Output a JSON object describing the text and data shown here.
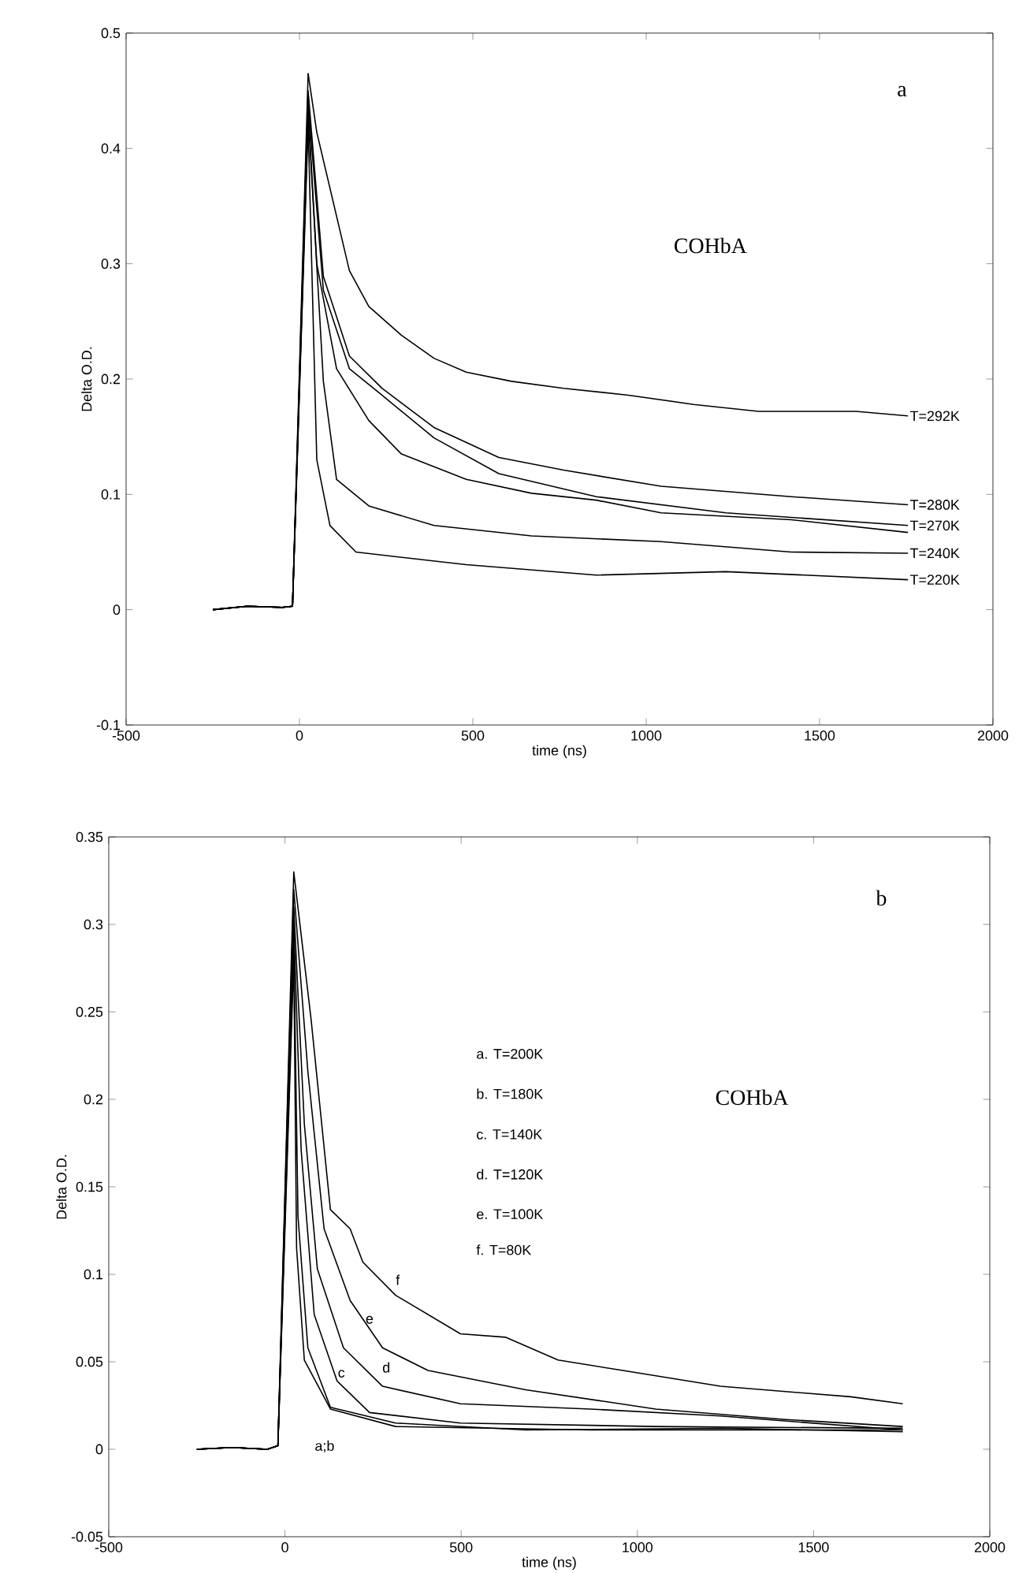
{
  "chart_data": [
    {
      "type": "line",
      "xlabel": "time  (ns)",
      "ylabel": "Delta O.D.",
      "xlim": [
        -500,
        2000
      ],
      "ylim": [
        -0.1,
        0.5
      ],
      "xticks": [
        -500,
        0,
        500,
        1000,
        1500,
        2000
      ],
      "yticks": [
        -0.1,
        0,
        0.1,
        0.2,
        0.3,
        0.4,
        0.5
      ],
      "series": [
        {
          "name": "T=292K",
          "color": "#000000",
          "x": [
            -250,
            -150,
            -50,
            -20,
            25,
            50,
            144,
            200,
            294,
            388,
            481,
            612,
            762,
            949,
            1137,
            1324,
            1605,
            1755
          ],
          "values": [
            0.0,
            0.003,
            0.002,
            0.003,
            0.465,
            0.414,
            0.294,
            0.263,
            0.238,
            0.218,
            0.206,
            0.198,
            0.192,
            0.186,
            0.178,
            0.172,
            0.172,
            0.168
          ]
        },
        {
          "name": "T=280K",
          "color": "#000000",
          "x": [
            -250,
            -150,
            -50,
            -20,
            25,
            69,
            144,
            238,
            388,
            575,
            762,
            1043,
            1418,
            1755
          ],
          "values": [
            0.0,
            0.003,
            0.002,
            0.003,
            0.45,
            0.289,
            0.22,
            0.192,
            0.158,
            0.132,
            0.121,
            0.107,
            0.098,
            0.091
          ]
        },
        {
          "name": "T=270K",
          "color": "#000000",
          "x": [
            -250,
            -150,
            -50,
            -20,
            25,
            69,
            144,
            238,
            388,
            575,
            856,
            1230,
            1755
          ],
          "values": [
            0.0,
            0.003,
            0.002,
            0.003,
            0.44,
            0.277,
            0.209,
            0.186,
            0.149,
            0.118,
            0.098,
            0.084,
            0.073
          ]
        },
        {
          "color": "#000000",
          "x": [
            -250,
            -150,
            -50,
            -20,
            25,
            50,
            107,
            200,
            294,
            481,
            669,
            856,
            1043,
            1418,
            1755
          ],
          "values": [
            0.0,
            0.003,
            0.002,
            0.003,
            0.435,
            0.3,
            0.209,
            0.164,
            0.135,
            0.113,
            0.101,
            0.095,
            0.084,
            0.078,
            0.067
          ]
        },
        {
          "name": "T=240K",
          "color": "#000000",
          "x": [
            -250,
            -150,
            -50,
            -20,
            25,
            69,
            107,
            200,
            388,
            669,
            1043,
            1418,
            1755
          ],
          "values": [
            0.0,
            0.003,
            0.002,
            0.003,
            0.43,
            0.198,
            0.113,
            0.09,
            0.073,
            0.064,
            0.059,
            0.05,
            0.049
          ]
        },
        {
          "name": "T=220K",
          "color": "#000000",
          "x": [
            -250,
            -150,
            -50,
            -20,
            25,
            50,
            88,
            163,
            481,
            856,
            1230,
            1755
          ],
          "values": [
            0.0,
            0.003,
            0.002,
            0.003,
            0.42,
            0.13,
            0.073,
            0.05,
            0.039,
            0.03,
            0.033,
            0.026
          ]
        }
      ],
      "annotations": [
        "a",
        "COHbA"
      ]
    },
    {
      "type": "line",
      "xlabel": "time  (ns)",
      "ylabel": "Delta O.D.",
      "xlim": [
        -500,
        2000
      ],
      "ylim": [
        -0.05,
        0.35
      ],
      "xticks": [
        -500,
        0,
        500,
        1000,
        1500,
        2000
      ],
      "yticks": [
        -0.05,
        0,
        0.05,
        0.1,
        0.15,
        0.2,
        0.25,
        0.3,
        0.35
      ],
      "series": [
        {
          "color": "#000000",
          "x": [
            -250,
            -150,
            -50,
            -20,
            25,
            33,
            55,
            129,
            314,
            867,
            1753
          ],
          "values": [
            0.0,
            0.001,
            0.0,
            0.002,
            0.28,
            0.115,
            0.051,
            0.023,
            0.013,
            0.011,
            0.011
          ]
        },
        {
          "color": "#000000",
          "x": [
            -250,
            -150,
            -50,
            -20,
            25,
            37,
            65,
            129,
            314,
            683,
            1236,
            1753
          ],
          "values": [
            0.0,
            0.001,
            0.0,
            0.002,
            0.29,
            0.133,
            0.058,
            0.024,
            0.015,
            0.011,
            0.012,
            0.01
          ]
        },
        {
          "color": "#000000",
          "x": [
            -250,
            -150,
            -50,
            -20,
            25,
            46,
            83,
            148,
            240,
            498,
            1052,
            1753
          ],
          "values": [
            0.0,
            0.001,
            0.0,
            0.002,
            0.3,
            0.171,
            0.077,
            0.039,
            0.021,
            0.015,
            0.013,
            0.012
          ]
        },
        {
          "color": "#000000",
          "x": [
            -250,
            -150,
            -50,
            -20,
            25,
            55,
            92,
            166,
            277,
            498,
            867,
            1236,
            1753
          ],
          "values": [
            0.0,
            0.001,
            0.0,
            0.002,
            0.31,
            0.186,
            0.103,
            0.058,
            0.036,
            0.026,
            0.023,
            0.019,
            0.011
          ]
        },
        {
          "color": "#000000",
          "x": [
            -250,
            -150,
            -50,
            -20,
            25,
            65,
            111,
            185,
            277,
            406,
            683,
            1052,
            1421,
            1753
          ],
          "values": [
            0.0,
            0.001,
            0.0,
            0.002,
            0.32,
            0.216,
            0.126,
            0.085,
            0.058,
            0.045,
            0.034,
            0.023,
            0.017,
            0.013
          ]
        },
        {
          "color": "#000000",
          "x": [
            -250,
            -150,
            -50,
            -20,
            25,
            74,
            129,
            185,
            221,
            314,
            498,
            627,
            775,
            959,
            1236,
            1605,
            1753
          ],
          "values": [
            0.0,
            0.001,
            0.0,
            0.002,
            0.33,
            0.246,
            0.137,
            0.126,
            0.107,
            0.088,
            0.066,
            0.064,
            0.051,
            0.045,
            0.036,
            0.03,
            0.026
          ]
        }
      ],
      "annotations": [
        "b",
        "COHbA",
        "a. T=200K",
        "b. T=180K",
        "c. T=140K",
        "d. T=120K",
        "e. T=100K",
        "f. T=80K",
        "f",
        "e",
        "d",
        "c",
        "a;b"
      ]
    }
  ]
}
